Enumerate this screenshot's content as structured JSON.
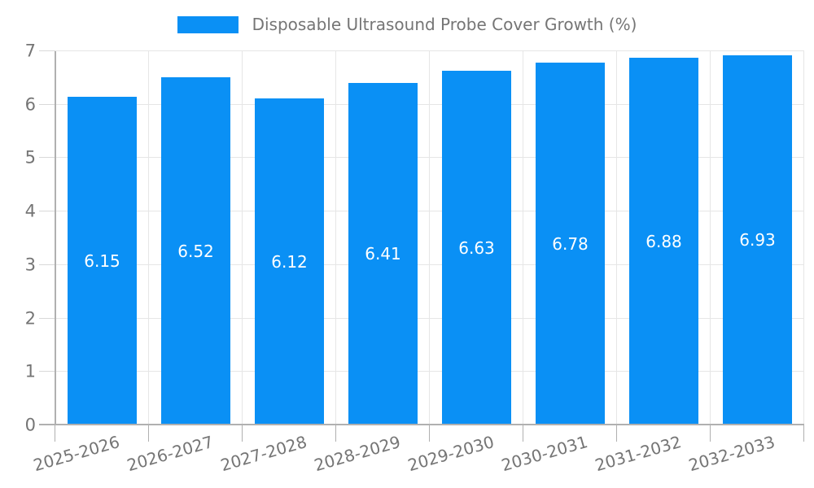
{
  "legend": {
    "label": "Disposable Ultrasound Probe Cover Growth (%)"
  },
  "chart_data": {
    "type": "bar",
    "title": "Disposable Ultrasound Probe Cover Growth (%)",
    "categories": [
      "2025-2026",
      "2026-2027",
      "2027-2028",
      "2028-2029",
      "2029-2030",
      "2030-2031",
      "2031-2032",
      "2032-2033"
    ],
    "values": [
      6.15,
      6.52,
      6.12,
      6.41,
      6.63,
      6.78,
      6.88,
      6.93
    ],
    "value_labels": [
      "6.15",
      "6.52",
      "6.12",
      "6.41",
      "6.63",
      "6.78",
      "6.88",
      "6.93"
    ],
    "xlabel": "",
    "ylabel": "",
    "ylim": [
      0,
      7
    ],
    "yticks": [
      0,
      1,
      2,
      3,
      4,
      5,
      6,
      7
    ],
    "grid": true,
    "legend_position": "top",
    "value_label_position": "middle-of-bar",
    "x_tick_rotation_deg": -16,
    "colors": {
      "bar": "#0a90f5",
      "grid": "#e6e6e6",
      "axis": "#b0b0b0",
      "minor_tick": "#d9d9d9",
      "label_text": "#757575",
      "value_text": "#ffffff",
      "background": "#ffffff"
    }
  }
}
